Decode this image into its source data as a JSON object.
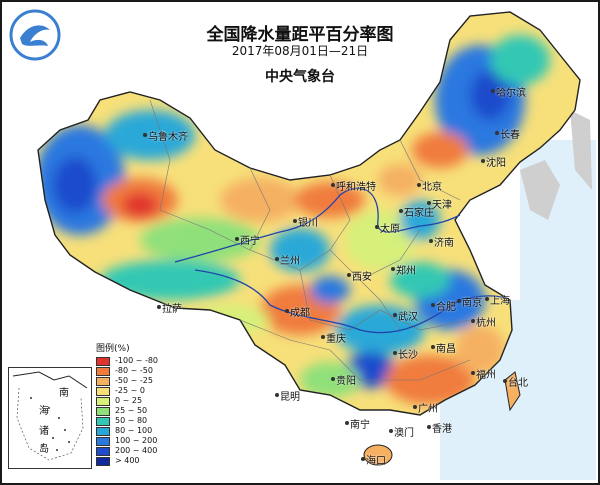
{
  "title": "全国降水量距平百分率图",
  "date_range": "2017年08月01日—21日",
  "issuer": "中央气象台",
  "logo_icon": "cma-logo-icon",
  "legend": {
    "title": "图例(%)",
    "items": [
      {
        "label": "-100 ~ -80",
        "color": "#e0332e"
      },
      {
        "label": "-80 ~ -50",
        "color": "#f07b3c"
      },
      {
        "label": "-50 ~ -25",
        "color": "#f5b062"
      },
      {
        "label": "-25 ~ 0",
        "color": "#f7e07a"
      },
      {
        "label": "0 ~ 25",
        "color": "#d6f07a"
      },
      {
        "label": "25 ~ 50",
        "color": "#8fe07a"
      },
      {
        "label": "50 ~ 80",
        "color": "#33c8b4"
      },
      {
        "label": "80 ~ 100",
        "color": "#29a8d8"
      },
      {
        "label": "100 ~ 200",
        "color": "#2a78e0"
      },
      {
        "label": "200 ~ 400",
        "color": "#1e4ccc"
      },
      {
        "label": "> 400",
        "color": "#102a9e"
      }
    ]
  },
  "cities": [
    "哈尔滨",
    "长春",
    "沈阳",
    "乌鲁木齐",
    "呼和浩特",
    "北京",
    "天津",
    "石家庄",
    "太原",
    "银川",
    "济南",
    "西宁",
    "兰州",
    "郑州",
    "西安",
    "合肥",
    "南京",
    "上海",
    "武汉",
    "杭州",
    "拉萨",
    "成都",
    "重庆",
    "长沙",
    "南昌",
    "福州",
    "台北",
    "贵阳",
    "昆明",
    "广州",
    "南宁",
    "澳门",
    "香港",
    "海口"
  ],
  "inset": {
    "sea_label": "南海诸岛"
  }
}
